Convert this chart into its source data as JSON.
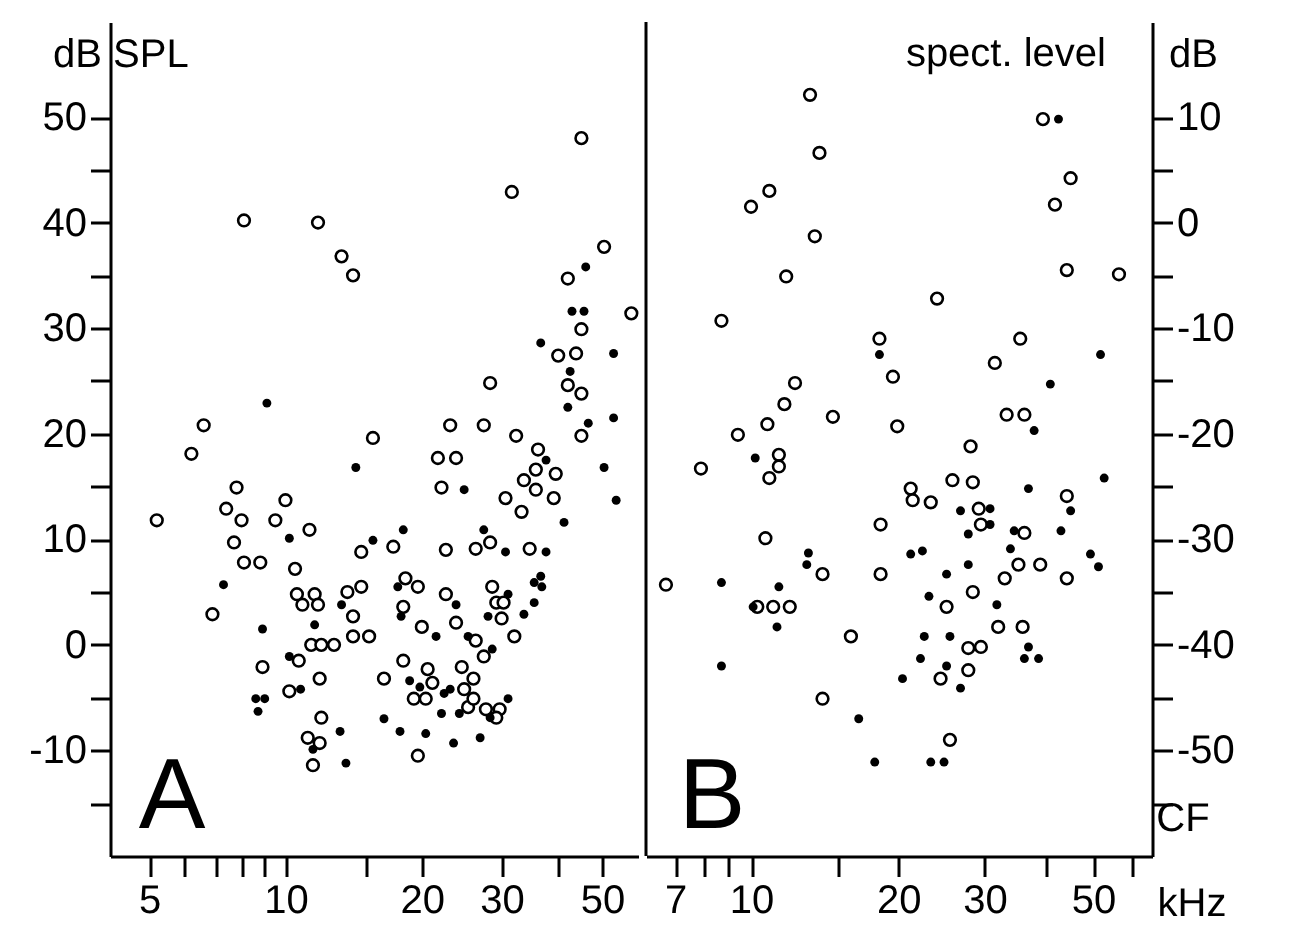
{
  "chart_data": [
    {
      "type": "scatter",
      "ylabel": "dB SPL",
      "log": "x",
      "marker": "circle",
      "annotations": [
        "A"
      ],
      "xlim": [
        4.1,
        60
      ],
      "ylim": [
        -20,
        59
      ],
      "xticks": [
        5,
        {
          "value": 6,
          "label": null
        },
        {
          "value": 7,
          "label": null
        },
        {
          "value": 8,
          "label": null
        },
        {
          "value": 9,
          "label": null
        },
        10,
        {
          "value": 15,
          "label": null
        },
        20,
        30,
        {
          "value": 40,
          "label": null
        },
        50
      ],
      "yticks": [
        {
          "value": -15,
          "label": null
        },
        -10,
        {
          "value": -5,
          "label": null
        },
        0,
        {
          "value": 5,
          "label": null
        },
        10,
        {
          "value": 15,
          "label": null
        },
        20,
        {
          "value": 25,
          "label": null
        },
        30,
        {
          "value": 35,
          "label": null
        },
        40,
        {
          "value": 45,
          "label": null
        },
        50
      ],
      "series": [
        {
          "color": "#ffffff",
          "x": [
            8.1,
            11.8,
            13.3,
            14.1,
            31.6,
            45,
            50.5,
            42,
            45,
            40,
            43.8,
            58,
            28.3,
            42,
            45,
            45,
            6.6,
            6.2,
            15.6,
            23.1,
            27.4,
            32.3,
            21.7,
            23.8,
            36.1,
            5.2,
            7.8,
            7.4,
            8,
            7.7,
            8.1,
            8.8,
            9.5,
            10,
            11.3,
            6.9,
            10.5,
            10.9,
            11.6,
            10.6,
            11.8,
            11.4,
            12,
            12.8,
            10.7,
            8.9,
            10.2,
            11.9,
            12,
            11.2,
            11.9,
            11.5,
            13.7,
            14.7,
            14.1,
            14.1,
            15.3,
            14.7,
            17.3,
            18.4,
            19.6,
            18.2,
            20,
            22.6,
            22.1,
            26.3,
            28.3,
            22.6,
            23.8,
            26.3,
            27.4,
            28.6,
            29.2,
            30.3,
            30,
            32,
            30.6,
            33.2,
            33.6,
            34.6,
            35.7,
            35.7,
            39.5,
            39.1,
            16.5,
            18.2,
            19.2,
            20.4,
            20.6,
            21.1,
            24.5,
            26,
            24.8,
            25.3,
            26,
            27.7,
            29.7,
            29.2,
            19.6
          ],
          "values": [
            40.2,
            40,
            36.8,
            35,
            42.9,
            48,
            37.7,
            34.7,
            29.9,
            27.4,
            27.6,
            31.4,
            24.8,
            24.6,
            23.8,
            19.8,
            20.8,
            18.1,
            19.6,
            20.8,
            20.8,
            19.8,
            17.7,
            17.7,
            18.5,
            11.8,
            14.9,
            12.9,
            11.8,
            9.7,
            7.8,
            7.8,
            11.8,
            13.7,
            10.9,
            2.9,
            7.2,
            3.8,
            4.8,
            4.8,
            3.8,
            0,
            0,
            0,
            -1.5,
            -2.1,
            -4.4,
            -3.2,
            -6.9,
            -8.8,
            -9.3,
            -11.4,
            5,
            5.5,
            2.7,
            0.8,
            0.8,
            8.8,
            9.3,
            6.3,
            5.5,
            3.6,
            1.7,
            9,
            14.9,
            9.1,
            9.7,
            4.8,
            2.1,
            0.4,
            -1.1,
            5.5,
            4,
            4,
            2.5,
            0.8,
            13.9,
            12.6,
            15.6,
            9.1,
            16.6,
            14.7,
            16.2,
            13.9,
            -3.2,
            -1.5,
            -5.1,
            -5.1,
            -2.3,
            -3.6,
            -2.1,
            -3.2,
            -4.2,
            -5.9,
            -5.1,
            -6.1,
            -6.1,
            -6.9,
            -10.5
          ]
        },
        {
          "color": "#000000",
          "x": [
            9.1,
            14.3,
            36.6,
            46,
            42.9,
            45.6,
            42.5,
            42,
            46.6,
            53,
            53,
            50.5,
            37.6,
            53.7,
            41.2,
            37.6,
            36.6,
            35.4,
            36.8,
            35.4,
            33.6,
            31,
            30.6,
            27.4,
            24.8,
            31,
            28,
            28.6,
            25.3,
            23.8,
            21.5,
            15.6,
            18.2,
            17.7,
            18,
            13.3,
            11.6,
            10.2,
            10.2,
            7.3,
            8.9,
            8.6,
            9,
            8.7,
            10.8,
            11.5,
            13.2,
            13.6,
            16.5,
            17.9,
            20.4,
            18.8,
            19.8,
            22.4,
            23.1,
            22.1,
            23.5,
            24.2,
            26.9,
            28.3
          ],
          "values": [
            22.9,
            16.8,
            28.6,
            35.8,
            31.6,
            31.6,
            25.9,
            22.5,
            21,
            27.6,
            21.5,
            16.8,
            17.5,
            13.7,
            11.6,
            8.8,
            6.5,
            5.9,
            5.5,
            4,
            2.9,
            -5.1,
            8.8,
            10.9,
            14.7,
            4.8,
            2.7,
            -0.4,
            0.8,
            3.8,
            0.8,
            9.9,
            10.9,
            5.5,
            2.7,
            3.8,
            1.9,
            -1.1,
            10.1,
            5.7,
            1.5,
            -5.1,
            -5.1,
            -6.3,
            -4.2,
            -9.9,
            -8.2,
            -11.2,
            -7,
            -8.2,
            -8.4,
            -3.4,
            -4,
            -4.6,
            -4.2,
            -6.5,
            -9.3,
            -6.5,
            -8.8,
            -6.9
          ]
        }
      ]
    },
    {
      "type": "scatter",
      "ylabel": "dB",
      "xlabel": "CF",
      "log": "x",
      "marker": "circle",
      "annotations": [
        "B",
        "spect. level",
        "kHz"
      ],
      "xlim": [
        6.1,
        66
      ],
      "ylim": [
        -60,
        19
      ],
      "xticks": [
        7,
        {
          "value": 8,
          "label": null
        },
        {
          "value": 9,
          "label": null
        },
        10,
        {
          "value": 15,
          "label": null
        },
        20,
        30,
        {
          "value": 40,
          "label": null
        },
        50,
        {
          "value": 60,
          "label": null
        }
      ],
      "yticks": [
        {
          "value": -55,
          "label": null
        },
        -50,
        {
          "value": -45,
          "label": null
        },
        -40,
        {
          "value": -35,
          "label": null
        },
        -30,
        {
          "value": -25,
          "label": null
        },
        -20,
        {
          "value": -15,
          "label": null
        },
        -10,
        {
          "value": -5,
          "label": null
        },
        0,
        {
          "value": 5,
          "label": null
        },
        10
      ],
      "series": [
        {
          "color": "#ffffff",
          "x": [
            13.2,
            13.8,
            10.9,
            10,
            13.5,
            11.8,
            8.7,
            24,
            18.3,
            19.5,
            35.5,
            31.5,
            33.3,
            36.2,
            19.9,
            14.7,
            12.3,
            11.7,
            10.8,
            9.4,
            7.9,
            11.4,
            11.4,
            10.9,
            39.5,
            45,
            41.8,
            44.2,
            56.5,
            28.1,
            6.7,
            10.7,
            10.3,
            11.1,
            12,
            14,
            16,
            14,
            18.4,
            18.4,
            21.2,
            21.4,
            23.3,
            25.8,
            28.4,
            29.2,
            29.5,
            25.1,
            28.4,
            33,
            35.2,
            39,
            36.2,
            44.2,
            44.2,
            32,
            35.9,
            27.8,
            29.5,
            27.8,
            24.4,
            25.5
          ],
          "values": [
            12.1,
            6.6,
            3,
            1.5,
            -1.3,
            -5.1,
            -9.3,
            -7.2,
            -11,
            -14.6,
            -11,
            -13.3,
            -18.2,
            -18.2,
            -19.3,
            -18.4,
            -15.2,
            -17.2,
            -19.1,
            -20.1,
            -23.3,
            -22,
            -23.1,
            -24.2,
            9.8,
            4.2,
            1.7,
            -4.5,
            -4.9,
            -21.2,
            -34.3,
            -29.9,
            -36.4,
            -36.4,
            -36.4,
            -33.3,
            -39.2,
            -45.1,
            -28.6,
            -33.3,
            -25.2,
            -26.3,
            -26.5,
            -24.4,
            -24.6,
            -27.1,
            -28.6,
            -36.4,
            -35,
            -33.7,
            -32.4,
            -32.4,
            -29.4,
            -25.9,
            -33.7,
            -38.3,
            -38.3,
            -40.3,
            -40.2,
            -42.4,
            -43.2,
            -49
          ]
        },
        {
          "color": "#000000",
          "x": [
            42.5,
            18.3,
            51.8,
            40.9,
            37.9,
            10.2,
            8.7,
            8.7,
            10.1,
            11.4,
            11.3,
            13.1,
            13,
            21.2,
            22.4,
            25.1,
            23.1,
            22.6,
            22.2,
            20.4,
            25.1,
            25.5,
            26.8,
            16.6,
            17.9,
            23.3,
            24.8,
            26.8,
            30.8,
            30.8,
            27.8,
            27.8,
            33.9,
            34.5,
            36.9,
            31.8,
            36.9,
            36.2,
            38.7,
            43,
            45,
            49.4,
            51.3,
            52.7
          ],
          "values": [
            9.8,
            -12.5,
            -12.5,
            -15.3,
            -19.7,
            -22.3,
            -34.1,
            -42,
            -36.4,
            -34.5,
            -38.3,
            -31.3,
            -32.4,
            -31.4,
            -31.1,
            -33.3,
            -35.4,
            -39.2,
            -41.3,
            -43.2,
            -42,
            -39.2,
            -44.1,
            -47,
            -51.1,
            -51.1,
            -51.1,
            -27.3,
            -27.1,
            -28.6,
            -29.5,
            -32.4,
            -30.9,
            -29.2,
            -25.2,
            -36.2,
            -40.2,
            -41.3,
            -41.3,
            -29.2,
            -27.3,
            -31.4,
            -32.6,
            -24.2
          ]
        }
      ]
    }
  ]
}
